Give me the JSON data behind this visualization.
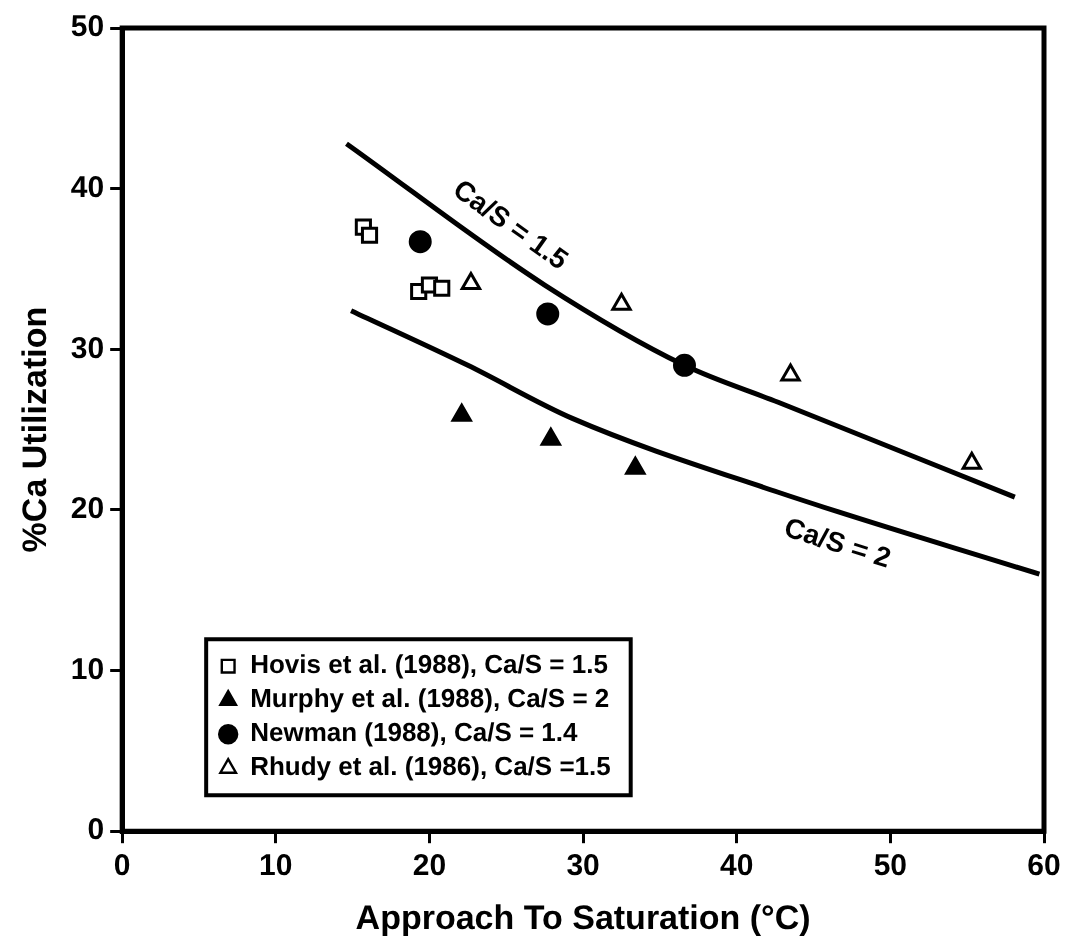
{
  "chart_data": {
    "type": "scatter",
    "xlabel": "Approach To Saturation (°C)",
    "ylabel": "%Ca Utilization",
    "xlim": [
      0,
      60
    ],
    "xticks": [
      0,
      10,
      20,
      30,
      40,
      50,
      60
    ],
    "ylim": [
      0,
      50
    ],
    "yticks": [
      0,
      10,
      20,
      30,
      40,
      50
    ],
    "grid": false,
    "legend": "bottom left",
    "series": [
      {
        "name": "Hovis et al. (1988), Ca/S = 1.5",
        "color": "#ffffff",
        "marker": "square",
        "x": [
          15.7,
          16.1,
          19.3,
          20.0,
          20.8
        ],
        "values": [
          37.6,
          37.1,
          33.6,
          34.0,
          33.8
        ]
      },
      {
        "name": "Murphy et al. (1988), Ca/S = 2",
        "color": "#000000",
        "marker": "triangle",
        "x": [
          22.1,
          27.9,
          33.4
        ],
        "values": [
          25.9,
          24.4,
          22.6
        ]
      },
      {
        "name": "Newman (1988), Ca/S = 1.4",
        "color": "#000000",
        "marker": "circle",
        "x": [
          19.4,
          27.7,
          36.6
        ],
        "values": [
          36.7,
          32.2,
          29.0
        ]
      },
      {
        "name": "Rhudy et al. (1986), Ca/S =1.5",
        "color": "#ffffff",
        "marker": "triangle",
        "x": [
          22.7,
          32.5,
          43.5,
          55.3
        ],
        "values": [
          34.1,
          32.8,
          28.4,
          22.9
        ]
      },
      {
        "name": "Ca/S = 1.5",
        "type": "line",
        "color": "#000000",
        "marker": "none",
        "x": [
          14.6,
          27.5,
          36.6,
          42.7,
          58.1
        ],
        "values": [
          42.8,
          34.0,
          29.0,
          26.7,
          20.8
        ]
      },
      {
        "name": "Ca/S = 2",
        "type": "line",
        "color": "#000000",
        "marker": "none",
        "x": [
          14.9,
          22.5,
          29.3,
          42.7,
          59.7
        ],
        "values": [
          32.4,
          29.0,
          25.7,
          21.1,
          16.0
        ]
      }
    ]
  }
}
